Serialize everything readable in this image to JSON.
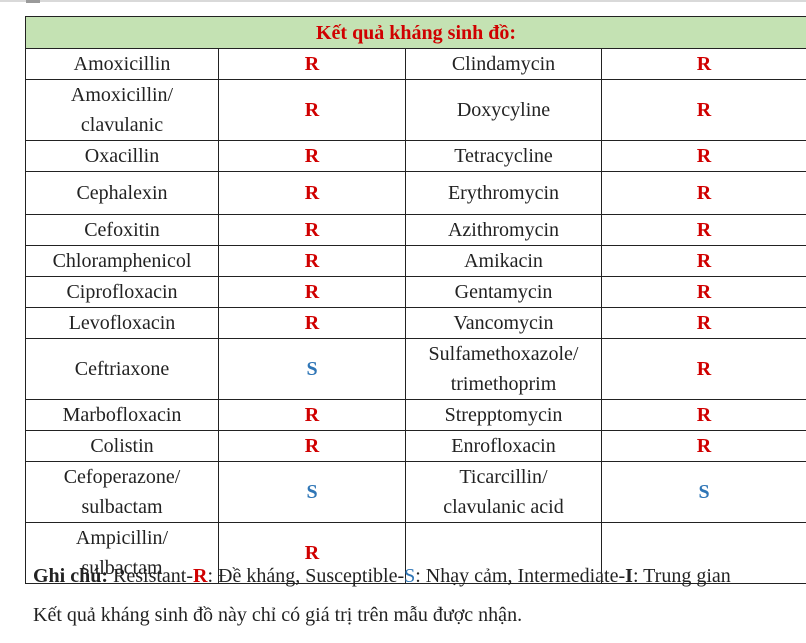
{
  "table": {
    "title": "Kết quả kháng sinh đồ:",
    "rows": [
      {
        "left": {
          "name": [
            "Amoxicillin"
          ],
          "result": "R"
        },
        "right": {
          "name": [
            "Clindamycin"
          ],
          "result": "R"
        }
      },
      {
        "left": {
          "name": [
            "Amoxicillin/",
            "clavulanic"
          ],
          "result": "R"
        },
        "right": {
          "name": [
            "Doxycyline"
          ],
          "result": "R"
        }
      },
      {
        "left": {
          "name": [
            "Oxacillin"
          ],
          "result": "R"
        },
        "right": {
          "name": [
            "Tetracycline"
          ],
          "result": "R"
        }
      },
      {
        "left": {
          "name": [
            "Cephalexin"
          ],
          "result": "R"
        },
        "right": {
          "name": [
            "Erythromycin"
          ],
          "result": "R"
        }
      },
      {
        "left": {
          "name": [
            "Cefoxitin"
          ],
          "result": "R"
        },
        "right": {
          "name": [
            "Azithromycin"
          ],
          "result": "R"
        }
      },
      {
        "left": {
          "name": [
            "Chloramphenicol"
          ],
          "result": "R"
        },
        "right": {
          "name": [
            "Amikacin"
          ],
          "result": "R"
        }
      },
      {
        "left": {
          "name": [
            "Ciprofloxacin"
          ],
          "result": "R"
        },
        "right": {
          "name": [
            "Gentamycin"
          ],
          "result": "R"
        }
      },
      {
        "left": {
          "name": [
            "Levofloxacin"
          ],
          "result": "R"
        },
        "right": {
          "name": [
            "Vancomycin"
          ],
          "result": "R"
        }
      },
      {
        "left": {
          "name": [
            "Ceftriaxone"
          ],
          "result": "S"
        },
        "right": {
          "name": [
            "Sulfamethoxazole/",
            "trimethoprim"
          ],
          "result": "R"
        }
      },
      {
        "left": {
          "name": [
            "Marbofloxacin"
          ],
          "result": "R"
        },
        "right": {
          "name": [
            "Strepptomycin"
          ],
          "result": "R"
        }
      },
      {
        "left": {
          "name": [
            "Colistin"
          ],
          "result": "R"
        },
        "right": {
          "name": [
            "Enrofloxacin"
          ],
          "result": "R"
        }
      },
      {
        "left": {
          "name": [
            "Cefoperazone/",
            "sulbactam"
          ],
          "result": "S"
        },
        "right": {
          "name": [
            "Ticarcillin/",
            "clavulanic acid"
          ],
          "result": "S"
        }
      },
      {
        "left": {
          "name": [
            "Ampicillin/",
            "sulbactam"
          ],
          "result": "R"
        },
        "right": {
          "name": [],
          "result": ""
        }
      }
    ]
  },
  "legend": {
    "prefix": "Ghi chú:",
    "resistant_word": "Resistant-",
    "resistant_code": "R",
    "resistant_desc": ": Đề kháng, ",
    "susceptible_word": "Susceptible-",
    "susceptible_code": "S",
    "susceptible_desc": ": Nhạy cảm, ",
    "intermediate_word": "Intermediate-",
    "intermediate_code": "I",
    "intermediate_desc": ": Trung gian"
  },
  "footer_note": "Kết quả kháng sinh đồ này chỉ có giá trị trên mẫu được nhận.",
  "colors": {
    "header_bg": "#c4e2b3",
    "resistant": "#d00000",
    "susceptible": "#2e75b6"
  }
}
